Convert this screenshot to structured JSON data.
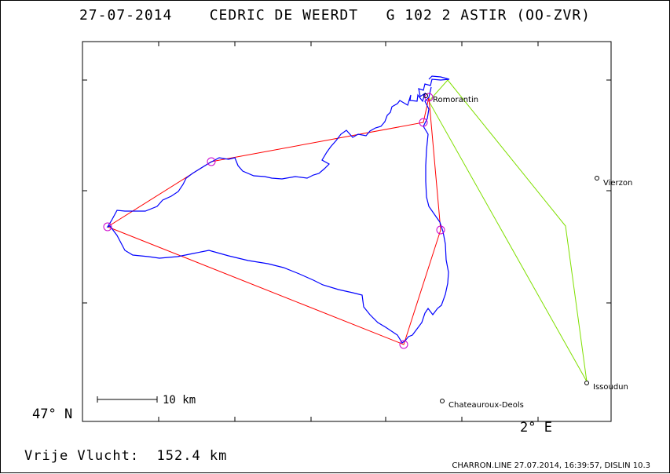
{
  "header": {
    "date": "27-07-2014",
    "pilot": "CEDRIC DE WEERDT",
    "glider": "G 102 2 ASTIR (OO-ZVR)"
  },
  "axes": {
    "lat_label": "47° N",
    "lon_label": "2° E"
  },
  "scale_bar": {
    "label": "10 km"
  },
  "places": [
    {
      "name": "Romorantin"
    },
    {
      "name": "Vierzon"
    },
    {
      "name": "Issoudun"
    },
    {
      "name": "Chateauroux-Deols"
    }
  ],
  "footer": {
    "result": "Vrije Vlucht:  152.4 km",
    "software": "CHARRON.LINE 27.07.2014, 16:39:57, DISLIN 10.3"
  },
  "colors": {
    "track": "#0000ff",
    "task": "#ff0000",
    "start_line": "#7fdf00",
    "turnpoint": "#cc00cc"
  }
}
